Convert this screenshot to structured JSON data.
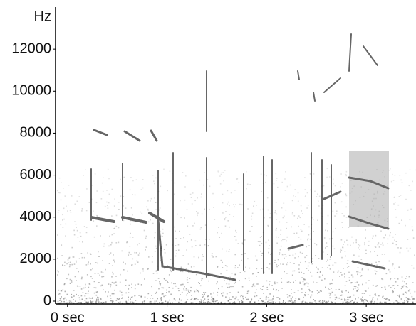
{
  "chart_data": {
    "type": "spectrogram",
    "y_label": "Hz",
    "xlim": [
      -0.12,
      3.5
    ],
    "xticks": [
      {
        "value": 0,
        "label": "0 sec"
      },
      {
        "value": 1,
        "label": "1 sec"
      },
      {
        "value": 2,
        "label": "2 sec"
      },
      {
        "value": 3,
        "label": "3 sec"
      }
    ],
    "ylim": [
      0,
      14000
    ],
    "yticks": [
      0,
      2000,
      4000,
      6000,
      8000,
      10000,
      12000
    ]
  }
}
